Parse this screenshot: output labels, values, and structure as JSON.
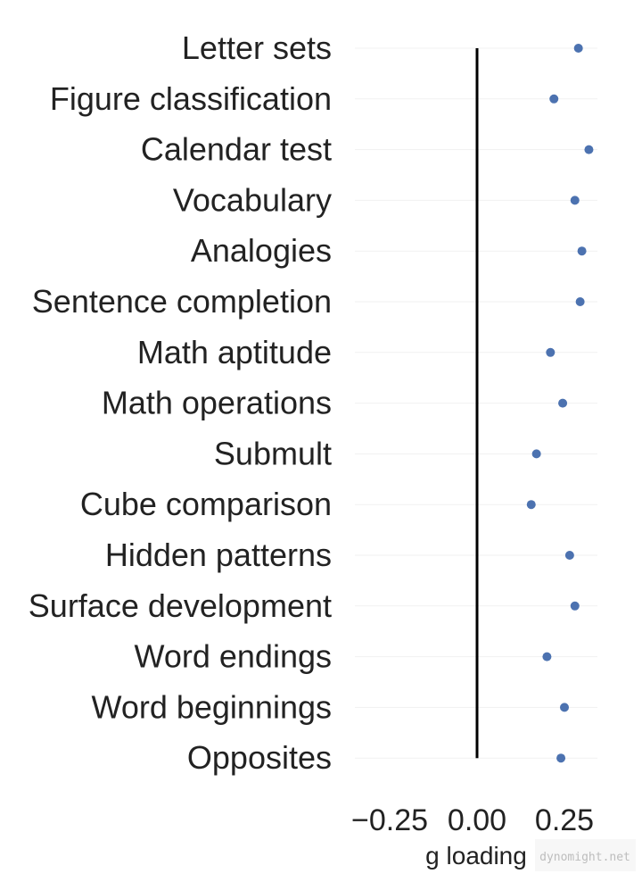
{
  "chart_data": {
    "type": "scatter",
    "orientation": "horizontal-dot",
    "categories": [
      "Letter sets",
      "Figure classification",
      "Calendar test",
      "Vocabulary",
      "Analogies",
      "Sentence completion",
      "Math aptitude",
      "Math operations",
      "Submult",
      "Cube comparison",
      "Hidden patterns",
      "Surface development",
      "Word endings",
      "Word beginnings",
      "Opposites"
    ],
    "values": [
      0.29,
      0.22,
      0.32,
      0.28,
      0.3,
      0.295,
      0.21,
      0.245,
      0.17,
      0.155,
      0.265,
      0.28,
      0.2,
      0.25,
      0.24
    ],
    "xlabel": "g loading",
    "xticks": [
      -0.25,
      0.0,
      0.25
    ],
    "xtick_labels": [
      "−0.25",
      "0.00",
      "0.25"
    ],
    "xlim": [
      -0.33,
      0.33
    ],
    "reference_line": 0.0,
    "grid": "horizontal",
    "point_color": "#4c72b0",
    "reference_color": "#000000"
  },
  "watermark": "dynomight.net"
}
